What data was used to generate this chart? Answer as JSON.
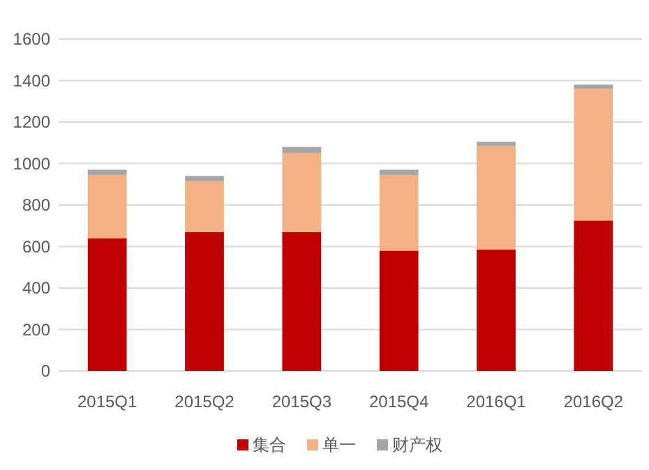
{
  "chart_data": {
    "type": "bar",
    "stacked": true,
    "categories": [
      "2015Q1",
      "2015Q2",
      "2015Q3",
      "2015Q4",
      "2016Q1",
      "2016Q2"
    ],
    "series": [
      {
        "name": "集合",
        "color": "#c00000",
        "values": [
          640,
          670,
          670,
          580,
          585,
          725
        ]
      },
      {
        "name": "单一",
        "color": "#f4b183",
        "values": [
          305,
          245,
          380,
          365,
          500,
          635
        ]
      },
      {
        "name": "财产权",
        "color": "#a5a5a5",
        "values": [
          25,
          25,
          30,
          25,
          20,
          20
        ]
      }
    ],
    "ylim": [
      0,
      1600
    ],
    "yticks": [
      0,
      200,
      400,
      600,
      800,
      1000,
      1200,
      1400,
      1600
    ],
    "grid": "y",
    "legend": "bottom"
  }
}
